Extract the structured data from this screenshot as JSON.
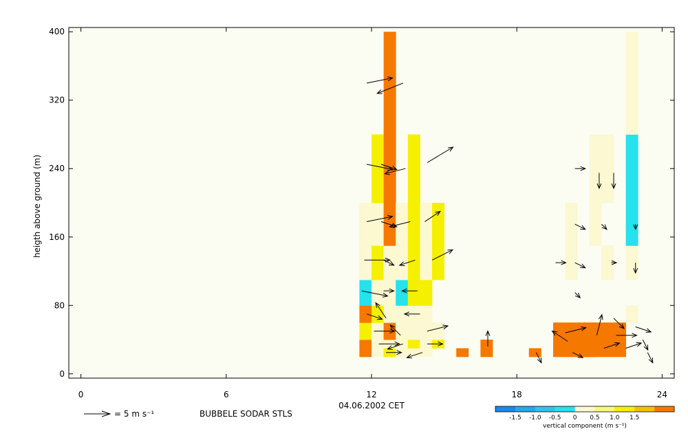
{
  "chart_data": {
    "type": "heatmap",
    "title": "",
    "xlabel": "04.06.2002 CET",
    "ylabel": "heigth above ground (m)",
    "xlim": [
      -0.5,
      24.5
    ],
    "ylim": [
      -5,
      405
    ],
    "x_ticks": [
      0,
      6,
      12,
      18,
      24
    ],
    "y_ticks": [
      0,
      80,
      160,
      240,
      320,
      400
    ],
    "plot_background": "#fbfdf3",
    "source_label": "BUBBELE SODAR STLS",
    "wind_scale": {
      "value": 5,
      "label": "= 5 m s⁻¹"
    },
    "colorbar": {
      "label": "vertical component (m s⁻¹)",
      "tick_labels": [
        "-1.5",
        "-1.0",
        "-0.5",
        "0",
        "0.5",
        "1.0",
        "1.5"
      ],
      "colors": [
        "#1e88e5",
        "#29a8e8",
        "#35c1ec",
        "#26e1ee",
        "#fbf8d2",
        "#f8f87e",
        "#f5f000",
        "#f5c000",
        "#f57800"
      ]
    },
    "cells": [
      {
        "t": 11.75,
        "w": 0.5,
        "h0": 20,
        "h1": 40,
        "color": "#f57800"
      },
      {
        "t": 11.75,
        "w": 0.5,
        "h0": 40,
        "h1": 60,
        "color": "#f5f000"
      },
      {
        "t": 11.75,
        "w": 0.5,
        "h0": 60,
        "h1": 80,
        "color": "#f57800"
      },
      {
        "t": 11.75,
        "w": 0.5,
        "h0": 80,
        "h1": 110,
        "color": "#26e1ee"
      },
      {
        "t": 11.75,
        "w": 0.5,
        "h0": 110,
        "h1": 150,
        "color": "#fbf8d2"
      },
      {
        "t": 11.75,
        "w": 0.5,
        "h0": 150,
        "h1": 200,
        "color": "#fbf8d2"
      },
      {
        "t": 12.25,
        "w": 0.5,
        "h0": 20,
        "h1": 30,
        "color": "#fbf8d2"
      },
      {
        "t": 12.25,
        "w": 0.5,
        "h0": 30,
        "h1": 60,
        "color": "#fbf8d2"
      },
      {
        "t": 12.25,
        "w": 0.5,
        "h0": 60,
        "h1": 80,
        "color": "#f5f000"
      },
      {
        "t": 12.25,
        "w": 0.5,
        "h0": 80,
        "h1": 110,
        "color": "#fbf8d2"
      },
      {
        "t": 12.25,
        "w": 0.5,
        "h0": 110,
        "h1": 150,
        "color": "#f5f000"
      },
      {
        "t": 12.25,
        "w": 0.5,
        "h0": 150,
        "h1": 200,
        "color": "#fbf8d2"
      },
      {
        "t": 12.25,
        "w": 0.5,
        "h0": 200,
        "h1": 280,
        "color": "#f5f000"
      },
      {
        "t": 12.75,
        "w": 0.5,
        "h0": 20,
        "h1": 30,
        "color": "#f5f000"
      },
      {
        "t": 12.75,
        "w": 0.5,
        "h0": 30,
        "h1": 40,
        "color": "#fbf8d2"
      },
      {
        "t": 12.75,
        "w": 0.5,
        "h0": 40,
        "h1": 60,
        "color": "#f57800"
      },
      {
        "t": 12.75,
        "w": 0.5,
        "h0": 60,
        "h1": 80,
        "color": "#fbf8d2"
      },
      {
        "t": 12.75,
        "w": 0.5,
        "h0": 80,
        "h1": 110,
        "color": "#fbf8d2"
      },
      {
        "t": 12.75,
        "w": 0.5,
        "h0": 110,
        "h1": 150,
        "color": "#fbf8d2"
      },
      {
        "t": 12.75,
        "w": 0.5,
        "h0": 150,
        "h1": 400,
        "color": "#f57800"
      },
      {
        "t": 13.25,
        "w": 0.5,
        "h0": 20,
        "h1": 60,
        "color": "#fbf8d2"
      },
      {
        "t": 13.25,
        "w": 0.5,
        "h0": 60,
        "h1": 80,
        "color": "#fbf8d2"
      },
      {
        "t": 13.25,
        "w": 0.5,
        "h0": 80,
        "h1": 110,
        "color": "#26e1ee"
      },
      {
        "t": 13.25,
        "w": 0.5,
        "h0": 110,
        "h1": 150,
        "color": "#fbf8d2"
      },
      {
        "t": 13.25,
        "w": 0.5,
        "h0": 150,
        "h1": 200,
        "color": "#fbf8d2"
      },
      {
        "t": 13.75,
        "w": 0.5,
        "h0": 20,
        "h1": 30,
        "color": "#fbf8d2"
      },
      {
        "t": 13.75,
        "w": 0.5,
        "h0": 30,
        "h1": 40,
        "color": "#f5f000"
      },
      {
        "t": 13.75,
        "w": 0.5,
        "h0": 40,
        "h1": 60,
        "color": "#fbf8d2"
      },
      {
        "t": 13.75,
        "w": 0.5,
        "h0": 60,
        "h1": 80,
        "color": "#fbf8d2"
      },
      {
        "t": 13.75,
        "w": 0.5,
        "h0": 80,
        "h1": 110,
        "color": "#f5f000"
      },
      {
        "t": 13.75,
        "w": 0.5,
        "h0": 110,
        "h1": 150,
        "color": "#f5f000"
      },
      {
        "t": 13.75,
        "w": 0.5,
        "h0": 150,
        "h1": 200,
        "color": "#f5f000"
      },
      {
        "t": 13.75,
        "w": 0.5,
        "h0": 200,
        "h1": 280,
        "color": "#f5f000"
      },
      {
        "t": 14.25,
        "w": 0.5,
        "h0": 20,
        "h1": 60,
        "color": "#fbf8d2"
      },
      {
        "t": 14.25,
        "w": 0.5,
        "h0": 60,
        "h1": 80,
        "color": "#fbf8d2"
      },
      {
        "t": 14.25,
        "w": 0.5,
        "h0": 80,
        "h1": 110,
        "color": "#f5f000"
      },
      {
        "t": 14.25,
        "w": 0.5,
        "h0": 110,
        "h1": 150,
        "color": "#fbf8d2"
      },
      {
        "t": 14.25,
        "w": 0.5,
        "h0": 150,
        "h1": 200,
        "color": "#fbf8d2"
      },
      {
        "t": 14.75,
        "w": 0.5,
        "h0": 30,
        "h1": 40,
        "color": "#f5f000"
      },
      {
        "t": 14.75,
        "w": 0.5,
        "h0": 40,
        "h1": 60,
        "color": "#fbf8d2"
      },
      {
        "t": 14.75,
        "w": 0.5,
        "h0": 110,
        "h1": 150,
        "color": "#f5f000"
      },
      {
        "t": 14.75,
        "w": 0.5,
        "h0": 150,
        "h1": 200,
        "color": "#f5f000"
      },
      {
        "t": 15.75,
        "w": 0.5,
        "h0": 20,
        "h1": 30,
        "color": "#f57800"
      },
      {
        "t": 16.75,
        "w": 0.5,
        "h0": 20,
        "h1": 40,
        "color": "#f57800"
      },
      {
        "t": 18.75,
        "w": 0.5,
        "h0": 20,
        "h1": 30,
        "color": "#f57800"
      },
      {
        "t": 20.0,
        "w": 1.0,
        "h0": 20,
        "h1": 60,
        "color": "#f57800"
      },
      {
        "t": 20.25,
        "w": 0.5,
        "h0": 110,
        "h1": 150,
        "color": "#fbf8d2"
      },
      {
        "t": 20.25,
        "w": 0.5,
        "h0": 150,
        "h1": 200,
        "color": "#fbf8d2"
      },
      {
        "t": 20.75,
        "w": 0.5,
        "h0": 20,
        "h1": 30,
        "color": "#f57800"
      },
      {
        "t": 21.0,
        "w": 0.5,
        "h0": 20,
        "h1": 60,
        "color": "#f57800"
      },
      {
        "t": 21.5,
        "w": 2.0,
        "h0": 20,
        "h1": 60,
        "color": "#f57800"
      },
      {
        "t": 21.25,
        "w": 0.5,
        "h0": 150,
        "h1": 200,
        "color": "#fbf8d2"
      },
      {
        "t": 21.5,
        "w": 1.0,
        "h0": 200,
        "h1": 280,
        "color": "#fbf8d2"
      },
      {
        "t": 21.75,
        "w": 0.5,
        "h0": 110,
        "h1": 150,
        "color": "#fbf8d2"
      },
      {
        "t": 22.75,
        "w": 0.5,
        "h0": 60,
        "h1": 80,
        "color": "#fbf8d2"
      },
      {
        "t": 22.75,
        "w": 0.5,
        "h0": 110,
        "h1": 150,
        "color": "#fbf8d2"
      },
      {
        "t": 22.75,
        "w": 0.5,
        "h0": 150,
        "h1": 280,
        "color": "#26e1ee"
      },
      {
        "t": 22.75,
        "w": 0.5,
        "h0": 280,
        "h1": 400,
        "color": "#fbf8d2"
      }
    ],
    "wind_vectors": [
      {
        "t": 11.8,
        "h": 340,
        "u": 5,
        "v": 1
      },
      {
        "t": 13.3,
        "h": 340,
        "u": -5,
        "v": -2
      },
      {
        "t": 11.8,
        "h": 245,
        "u": 5,
        "v": -1
      },
      {
        "t": 12.4,
        "h": 245,
        "u": 3,
        "v": -1
      },
      {
        "t": 13.4,
        "h": 240,
        "u": -4,
        "v": -1
      },
      {
        "t": 14.3,
        "h": 247,
        "u": 5,
        "v": 3
      },
      {
        "t": 11.8,
        "h": 178,
        "u": 5,
        "v": 1
      },
      {
        "t": 12.4,
        "h": 178,
        "u": 3,
        "v": -1
      },
      {
        "t": 13.6,
        "h": 178,
        "u": -4,
        "v": -1
      },
      {
        "t": 14.2,
        "h": 178,
        "u": 3,
        "v": 2
      },
      {
        "t": 11.7,
        "h": 133,
        "u": 5,
        "v": 0
      },
      {
        "t": 12.5,
        "h": 133,
        "u": 2,
        "v": -1
      },
      {
        "t": 13.8,
        "h": 133,
        "u": -3,
        "v": -1
      },
      {
        "t": 14.5,
        "h": 133,
        "u": 4,
        "v": 2
      },
      {
        "t": 11.6,
        "h": 97,
        "u": 5,
        "v": -1
      },
      {
        "t": 12.5,
        "h": 97,
        "u": 2,
        "v": 0
      },
      {
        "t": 13.9,
        "h": 97,
        "u": -3,
        "v": 0
      },
      {
        "t": 11.8,
        "h": 70,
        "u": 3,
        "v": -1
      },
      {
        "t": 12.6,
        "h": 65,
        "u": -2,
        "v": 3
      },
      {
        "t": 14.0,
        "h": 70,
        "u": -3,
        "v": 0
      },
      {
        "t": 12.1,
        "h": 50,
        "u": 4,
        "v": 0
      },
      {
        "t": 13.2,
        "h": 45,
        "u": -2,
        "v": 2
      },
      {
        "t": 14.3,
        "h": 50,
        "u": 4,
        "v": 1
      },
      {
        "t": 12.3,
        "h": 35,
        "u": 4,
        "v": 0
      },
      {
        "t": 13.3,
        "h": 35,
        "u": -3,
        "v": -1
      },
      {
        "t": 14.3,
        "h": 35,
        "u": 3,
        "v": 0
      },
      {
        "t": 12.6,
        "h": 25,
        "u": 3,
        "v": 0
      },
      {
        "t": 14.1,
        "h": 25,
        "u": -3,
        "v": -1
      },
      {
        "t": 16.8,
        "h": 32,
        "u": 0,
        "v": 3
      },
      {
        "t": 18.8,
        "h": 25,
        "u": 1,
        "v": -2
      },
      {
        "t": 20.4,
        "h": 240,
        "u": 2,
        "v": 0
      },
      {
        "t": 20.4,
        "h": 175,
        "u": 2,
        "v": -1
      },
      {
        "t": 20.4,
        "h": 130,
        "u": 2,
        "v": -1
      },
      {
        "t": 19.6,
        "h": 130,
        "u": 2,
        "v": 0
      },
      {
        "t": 20.4,
        "h": 95,
        "u": 1,
        "v": -1
      },
      {
        "t": 21.4,
        "h": 235,
        "u": 0,
        "v": -3
      },
      {
        "t": 22.0,
        "h": 235,
        "u": 0,
        "v": -3
      },
      {
        "t": 21.5,
        "h": 175,
        "u": 1,
        "v": -1
      },
      {
        "t": 21.9,
        "h": 130,
        "u": 1,
        "v": 0
      },
      {
        "t": 22.9,
        "h": 175,
        "u": 0,
        "v": -1
      },
      {
        "t": 22.9,
        "h": 130,
        "u": 0,
        "v": -2
      },
      {
        "t": 20.0,
        "h": 48,
        "u": 4,
        "v": 1
      },
      {
        "t": 20.1,
        "h": 38,
        "u": -3,
        "v": 2
      },
      {
        "t": 20.3,
        "h": 25,
        "u": 2,
        "v": -1
      },
      {
        "t": 21.3,
        "h": 45,
        "u": 1,
        "v": 4
      },
      {
        "t": 21.6,
        "h": 30,
        "u": 3,
        "v": 1
      },
      {
        "t": 22.0,
        "h": 65,
        "u": 2,
        "v": -2
      },
      {
        "t": 22.1,
        "h": 45,
        "u": 4,
        "v": 0
      },
      {
        "t": 22.5,
        "h": 30,
        "u": 3,
        "v": 1
      },
      {
        "t": 22.9,
        "h": 55,
        "u": 3,
        "v": -1
      },
      {
        "t": 23.2,
        "h": 40,
        "u": 1,
        "v": -2
      },
      {
        "t": 23.4,
        "h": 25,
        "u": 1,
        "v": -2
      }
    ]
  }
}
